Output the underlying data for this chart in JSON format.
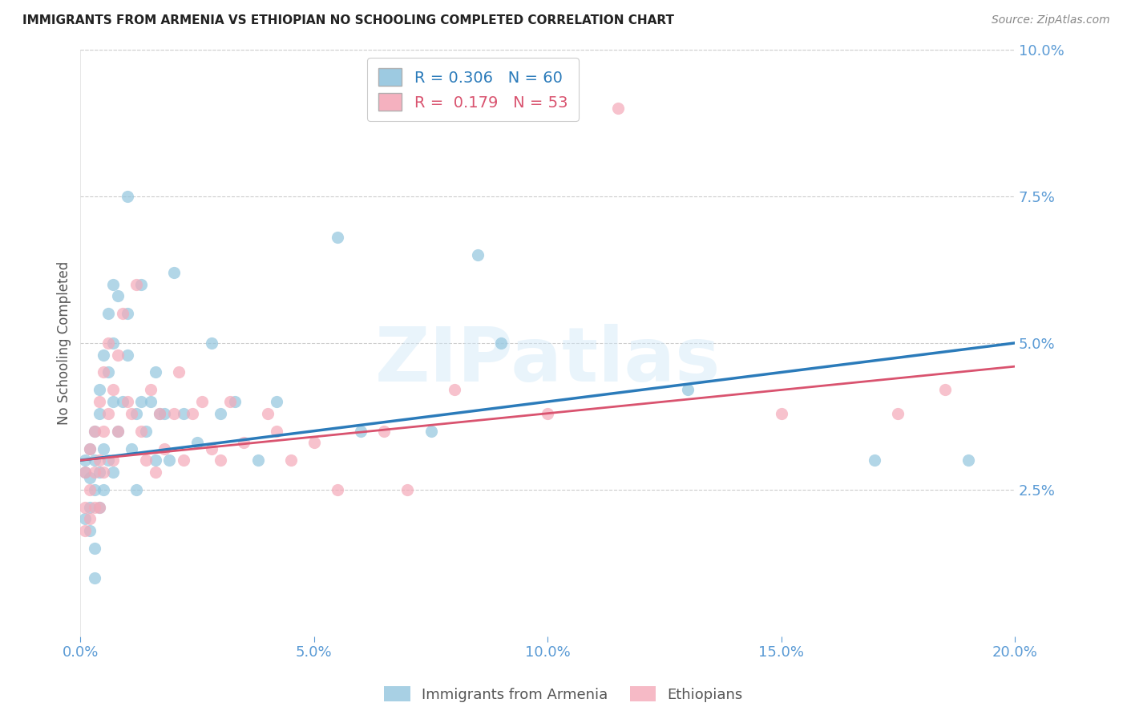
{
  "title": "IMMIGRANTS FROM ARMENIA VS ETHIOPIAN NO SCHOOLING COMPLETED CORRELATION CHART",
  "source": "Source: ZipAtlas.com",
  "ylabel": "No Schooling Completed",
  "xlim": [
    0.0,
    0.2
  ],
  "ylim": [
    0.0,
    0.1
  ],
  "xticks": [
    0.0,
    0.05,
    0.1,
    0.15,
    0.2
  ],
  "yticks_right": [
    0.025,
    0.05,
    0.075,
    0.1
  ],
  "series1_label": "Immigrants from Armenia",
  "series2_label": "Ethiopians",
  "series1_color": "#92c5de",
  "series2_color": "#f4a9b8",
  "trendline1_color": "#2b7bba",
  "trendline2_color": "#d9536f",
  "watermark_text": "ZIPatlas",
  "background_color": "#ffffff",
  "grid_color": "#cccccc",
  "axis_label_color": "#5b9bd5",
  "title_color": "#222222",
  "trendline1_start_y": 0.03,
  "trendline1_end_y": 0.05,
  "trendline2_start_y": 0.03,
  "trendline2_end_y": 0.046,
  "scatter1_x": [
    0.001,
    0.001,
    0.001,
    0.002,
    0.002,
    0.002,
    0.002,
    0.003,
    0.003,
    0.003,
    0.003,
    0.003,
    0.004,
    0.004,
    0.004,
    0.004,
    0.005,
    0.005,
    0.005,
    0.006,
    0.006,
    0.006,
    0.007,
    0.007,
    0.007,
    0.007,
    0.008,
    0.008,
    0.009,
    0.01,
    0.01,
    0.01,
    0.011,
    0.012,
    0.012,
    0.013,
    0.013,
    0.014,
    0.015,
    0.016,
    0.016,
    0.017,
    0.018,
    0.019,
    0.02,
    0.022,
    0.025,
    0.028,
    0.03,
    0.033,
    0.038,
    0.042,
    0.055,
    0.06,
    0.075,
    0.085,
    0.09,
    0.13,
    0.17,
    0.19
  ],
  "scatter1_y": [
    0.03,
    0.028,
    0.02,
    0.032,
    0.027,
    0.022,
    0.018,
    0.035,
    0.03,
    0.025,
    0.015,
    0.01,
    0.042,
    0.038,
    0.028,
    0.022,
    0.048,
    0.032,
    0.025,
    0.055,
    0.045,
    0.03,
    0.06,
    0.05,
    0.04,
    0.028,
    0.058,
    0.035,
    0.04,
    0.048,
    0.055,
    0.075,
    0.032,
    0.038,
    0.025,
    0.04,
    0.06,
    0.035,
    0.04,
    0.045,
    0.03,
    0.038,
    0.038,
    0.03,
    0.062,
    0.038,
    0.033,
    0.05,
    0.038,
    0.04,
    0.03,
    0.04,
    0.068,
    0.035,
    0.035,
    0.065,
    0.05,
    0.042,
    0.03,
    0.03
  ],
  "scatter2_x": [
    0.001,
    0.001,
    0.001,
    0.002,
    0.002,
    0.002,
    0.003,
    0.003,
    0.003,
    0.004,
    0.004,
    0.004,
    0.005,
    0.005,
    0.005,
    0.006,
    0.006,
    0.007,
    0.007,
    0.008,
    0.008,
    0.009,
    0.01,
    0.011,
    0.012,
    0.013,
    0.014,
    0.015,
    0.016,
    0.017,
    0.018,
    0.02,
    0.021,
    0.022,
    0.024,
    0.026,
    0.028,
    0.03,
    0.032,
    0.035,
    0.04,
    0.042,
    0.045,
    0.05,
    0.055,
    0.065,
    0.07,
    0.08,
    0.1,
    0.115,
    0.15,
    0.175,
    0.185
  ],
  "scatter2_y": [
    0.028,
    0.022,
    0.018,
    0.032,
    0.025,
    0.02,
    0.035,
    0.028,
    0.022,
    0.04,
    0.03,
    0.022,
    0.045,
    0.035,
    0.028,
    0.05,
    0.038,
    0.042,
    0.03,
    0.048,
    0.035,
    0.055,
    0.04,
    0.038,
    0.06,
    0.035,
    0.03,
    0.042,
    0.028,
    0.038,
    0.032,
    0.038,
    0.045,
    0.03,
    0.038,
    0.04,
    0.032,
    0.03,
    0.04,
    0.033,
    0.038,
    0.035,
    0.03,
    0.033,
    0.025,
    0.035,
    0.025,
    0.042,
    0.038,
    0.09,
    0.038,
    0.038,
    0.042
  ]
}
